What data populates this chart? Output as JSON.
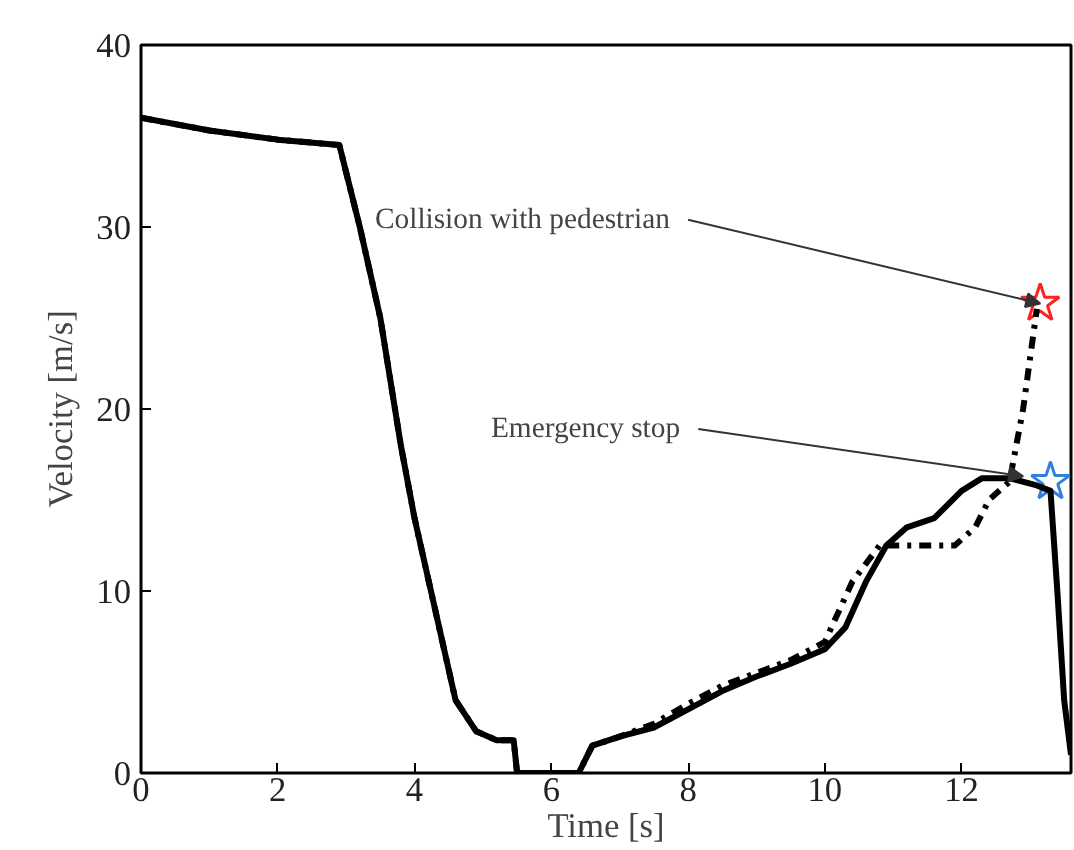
{
  "chart_data": {
    "type": "line",
    "xlabel": "Time [s]",
    "ylabel": "Velocity [m/s]",
    "xlim": [
      0,
      13.6
    ],
    "ylim": [
      0,
      40
    ],
    "xticks": [
      0,
      2,
      4,
      6,
      8,
      10,
      12
    ],
    "yticks": [
      0,
      10,
      20,
      30,
      40
    ],
    "grid": false,
    "series": [
      {
        "line_style": "solid",
        "color": "#000000",
        "x": [
          0,
          1,
          2,
          2.9,
          3.2,
          3.5,
          3.8,
          4,
          4.3,
          4.6,
          4.9,
          5.2,
          5.45,
          5.5,
          6.4,
          6.6,
          7,
          7.5,
          8,
          8.5,
          9,
          9.5,
          10,
          10.3,
          10.6,
          10.9,
          11.2,
          11.6,
          12,
          12.3,
          12.7,
          13.1,
          13.3,
          13.4,
          13.5,
          13.6
        ],
        "values": [
          36,
          35.3,
          34.8,
          34.5,
          30,
          25,
          18,
          14,
          9,
          4,
          2.3,
          1.8,
          1.8,
          0,
          0,
          1.5,
          2,
          2.5,
          3.5,
          4.5,
          5.3,
          6,
          6.8,
          8,
          10.5,
          12.5,
          13.5,
          14,
          15.5,
          16.2,
          16.2,
          15.8,
          15.5,
          10,
          4,
          1
        ]
      },
      {
        "line_style": "dashdot",
        "color": "#000000",
        "x": [
          0,
          1,
          2,
          2.9,
          3.2,
          3.5,
          3.8,
          4,
          4.3,
          4.6,
          4.9,
          5.2,
          5.45,
          5.5,
          6.4,
          6.6,
          7,
          7.5,
          8,
          8.5,
          9,
          9.5,
          9.8,
          10,
          10.4,
          10.8,
          11,
          11.5,
          11.9,
          12.2,
          12.4,
          12.7,
          12.9,
          13.1
        ],
        "values": [
          36,
          35.3,
          34.8,
          34.5,
          30,
          25,
          18,
          14,
          9,
          4,
          2.3,
          1.8,
          1.8,
          0,
          0,
          1.5,
          2,
          2.7,
          3.8,
          4.8,
          5.5,
          6.2,
          6.8,
          7.2,
          10.5,
          12.5,
          12.5,
          12.5,
          12.5,
          13.5,
          15,
          16,
          20,
          25.5
        ]
      },
      {
        "type": "scatter",
        "marker": "star",
        "color": "#ff2020",
        "x": [
          13.15
        ],
        "values": [
          25.8
        ]
      },
      {
        "type": "scatter",
        "marker": "star",
        "color": "#3080e0",
        "x": [
          13.3
        ],
        "values": [
          16
        ]
      }
    ],
    "annotations": [
      {
        "text": "Collision with pedestrian",
        "x": 13.15,
        "y": 25.8
      },
      {
        "text": "Emergency stop",
        "x": 12.9,
        "y": 16.3
      }
    ]
  }
}
